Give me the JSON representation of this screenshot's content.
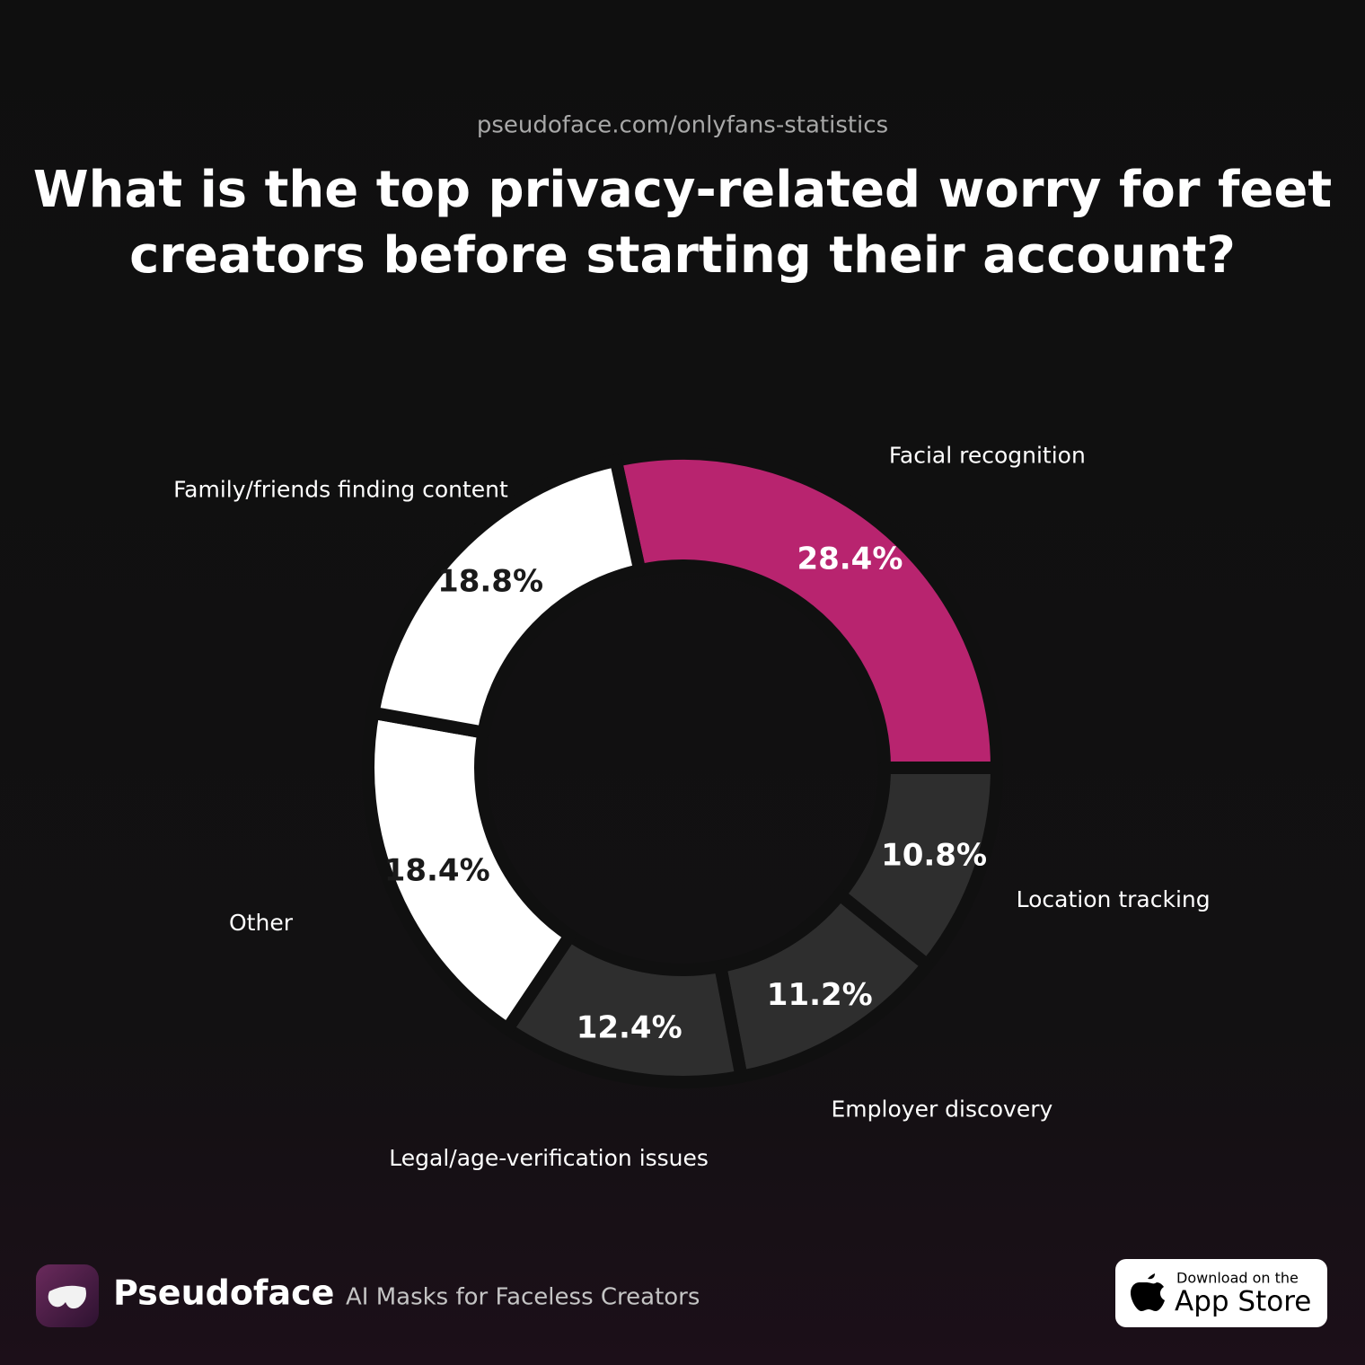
{
  "chart_data": {
    "type": "donut",
    "source": "pseudoface.com/onlyfans-statistics",
    "title": [
      "What is the top privacy-related worry for feet",
      "creators before starting their account?"
    ],
    "categories": [
      "Facial recognition",
      "Location tracking",
      "Employer discovery",
      "Legal/age-verification issues",
      "Other",
      "Family/friends finding content"
    ],
    "values": [
      28.4,
      10.8,
      11.2,
      12.4,
      18.4,
      18.8
    ],
    "value_labels": [
      "28.4%",
      "10.8%",
      "11.2%",
      "12.4%",
      "18.4%",
      "18.8%"
    ],
    "colors": [
      "#b8246f",
      "#2e2e2e",
      "#2e2e2e",
      "#2e2e2e",
      "#ffffff",
      "#ffffff"
    ]
  },
  "footer": {
    "brand": "Pseudoface",
    "tagline": "AI Masks for Faceless Creators",
    "badge": {
      "small": "Download on the",
      "large": "App Store"
    }
  }
}
